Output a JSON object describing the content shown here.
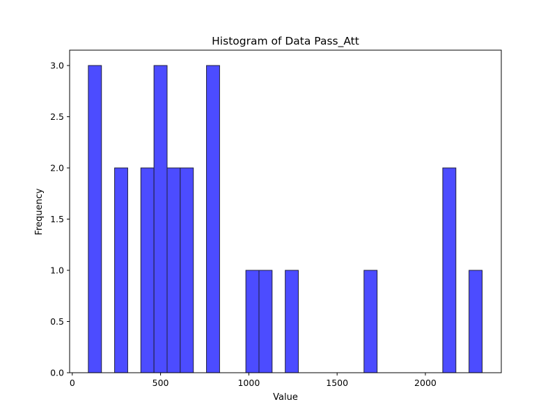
{
  "chart_data": {
    "type": "bar",
    "subtype": "histogram",
    "title": "Histogram of Data Pass_Att",
    "xlabel": "Value",
    "ylabel": "Frequency",
    "bin_start": 91,
    "bin_width": 74.35,
    "bins": [
      {
        "x0": 91,
        "x1": 165.35,
        "count": 3
      },
      {
        "x0": 239.7,
        "x1": 314.05,
        "count": 2
      },
      {
        "x0": 388.4,
        "x1": 462.75,
        "count": 2
      },
      {
        "x0": 462.75,
        "x1": 537.1,
        "count": 3
      },
      {
        "x0": 537.1,
        "x1": 611.45,
        "count": 2
      },
      {
        "x0": 611.45,
        "x1": 685.8,
        "count": 2
      },
      {
        "x0": 760.15,
        "x1": 834.5,
        "count": 3
      },
      {
        "x0": 983.2,
        "x1": 1057.55,
        "count": 1
      },
      {
        "x0": 1057.55,
        "x1": 1131.9,
        "count": 1
      },
      {
        "x0": 1206.25,
        "x1": 1280.6,
        "count": 1
      },
      {
        "x0": 1652.35,
        "x1": 1726.7,
        "count": 1
      },
      {
        "x0": 2098.45,
        "x1": 2172.8,
        "count": 2
      },
      {
        "x0": 2247.15,
        "x1": 2321.5,
        "count": 1
      }
    ],
    "xlim": [
      -15,
      2430
    ],
    "ylim": [
      0,
      3.15
    ],
    "xticks": [
      0,
      500,
      1000,
      1500,
      2000
    ],
    "yticks": [
      0.0,
      0.5,
      1.0,
      1.5,
      2.0,
      2.5,
      3.0
    ],
    "ytick_labels": [
      "0.0",
      "0.5",
      "1.0",
      "1.5",
      "2.0",
      "2.5",
      "3.0"
    ],
    "grid": false,
    "bar_color": "#4c4cff",
    "bar_edge_color": "#1f1f3a"
  }
}
